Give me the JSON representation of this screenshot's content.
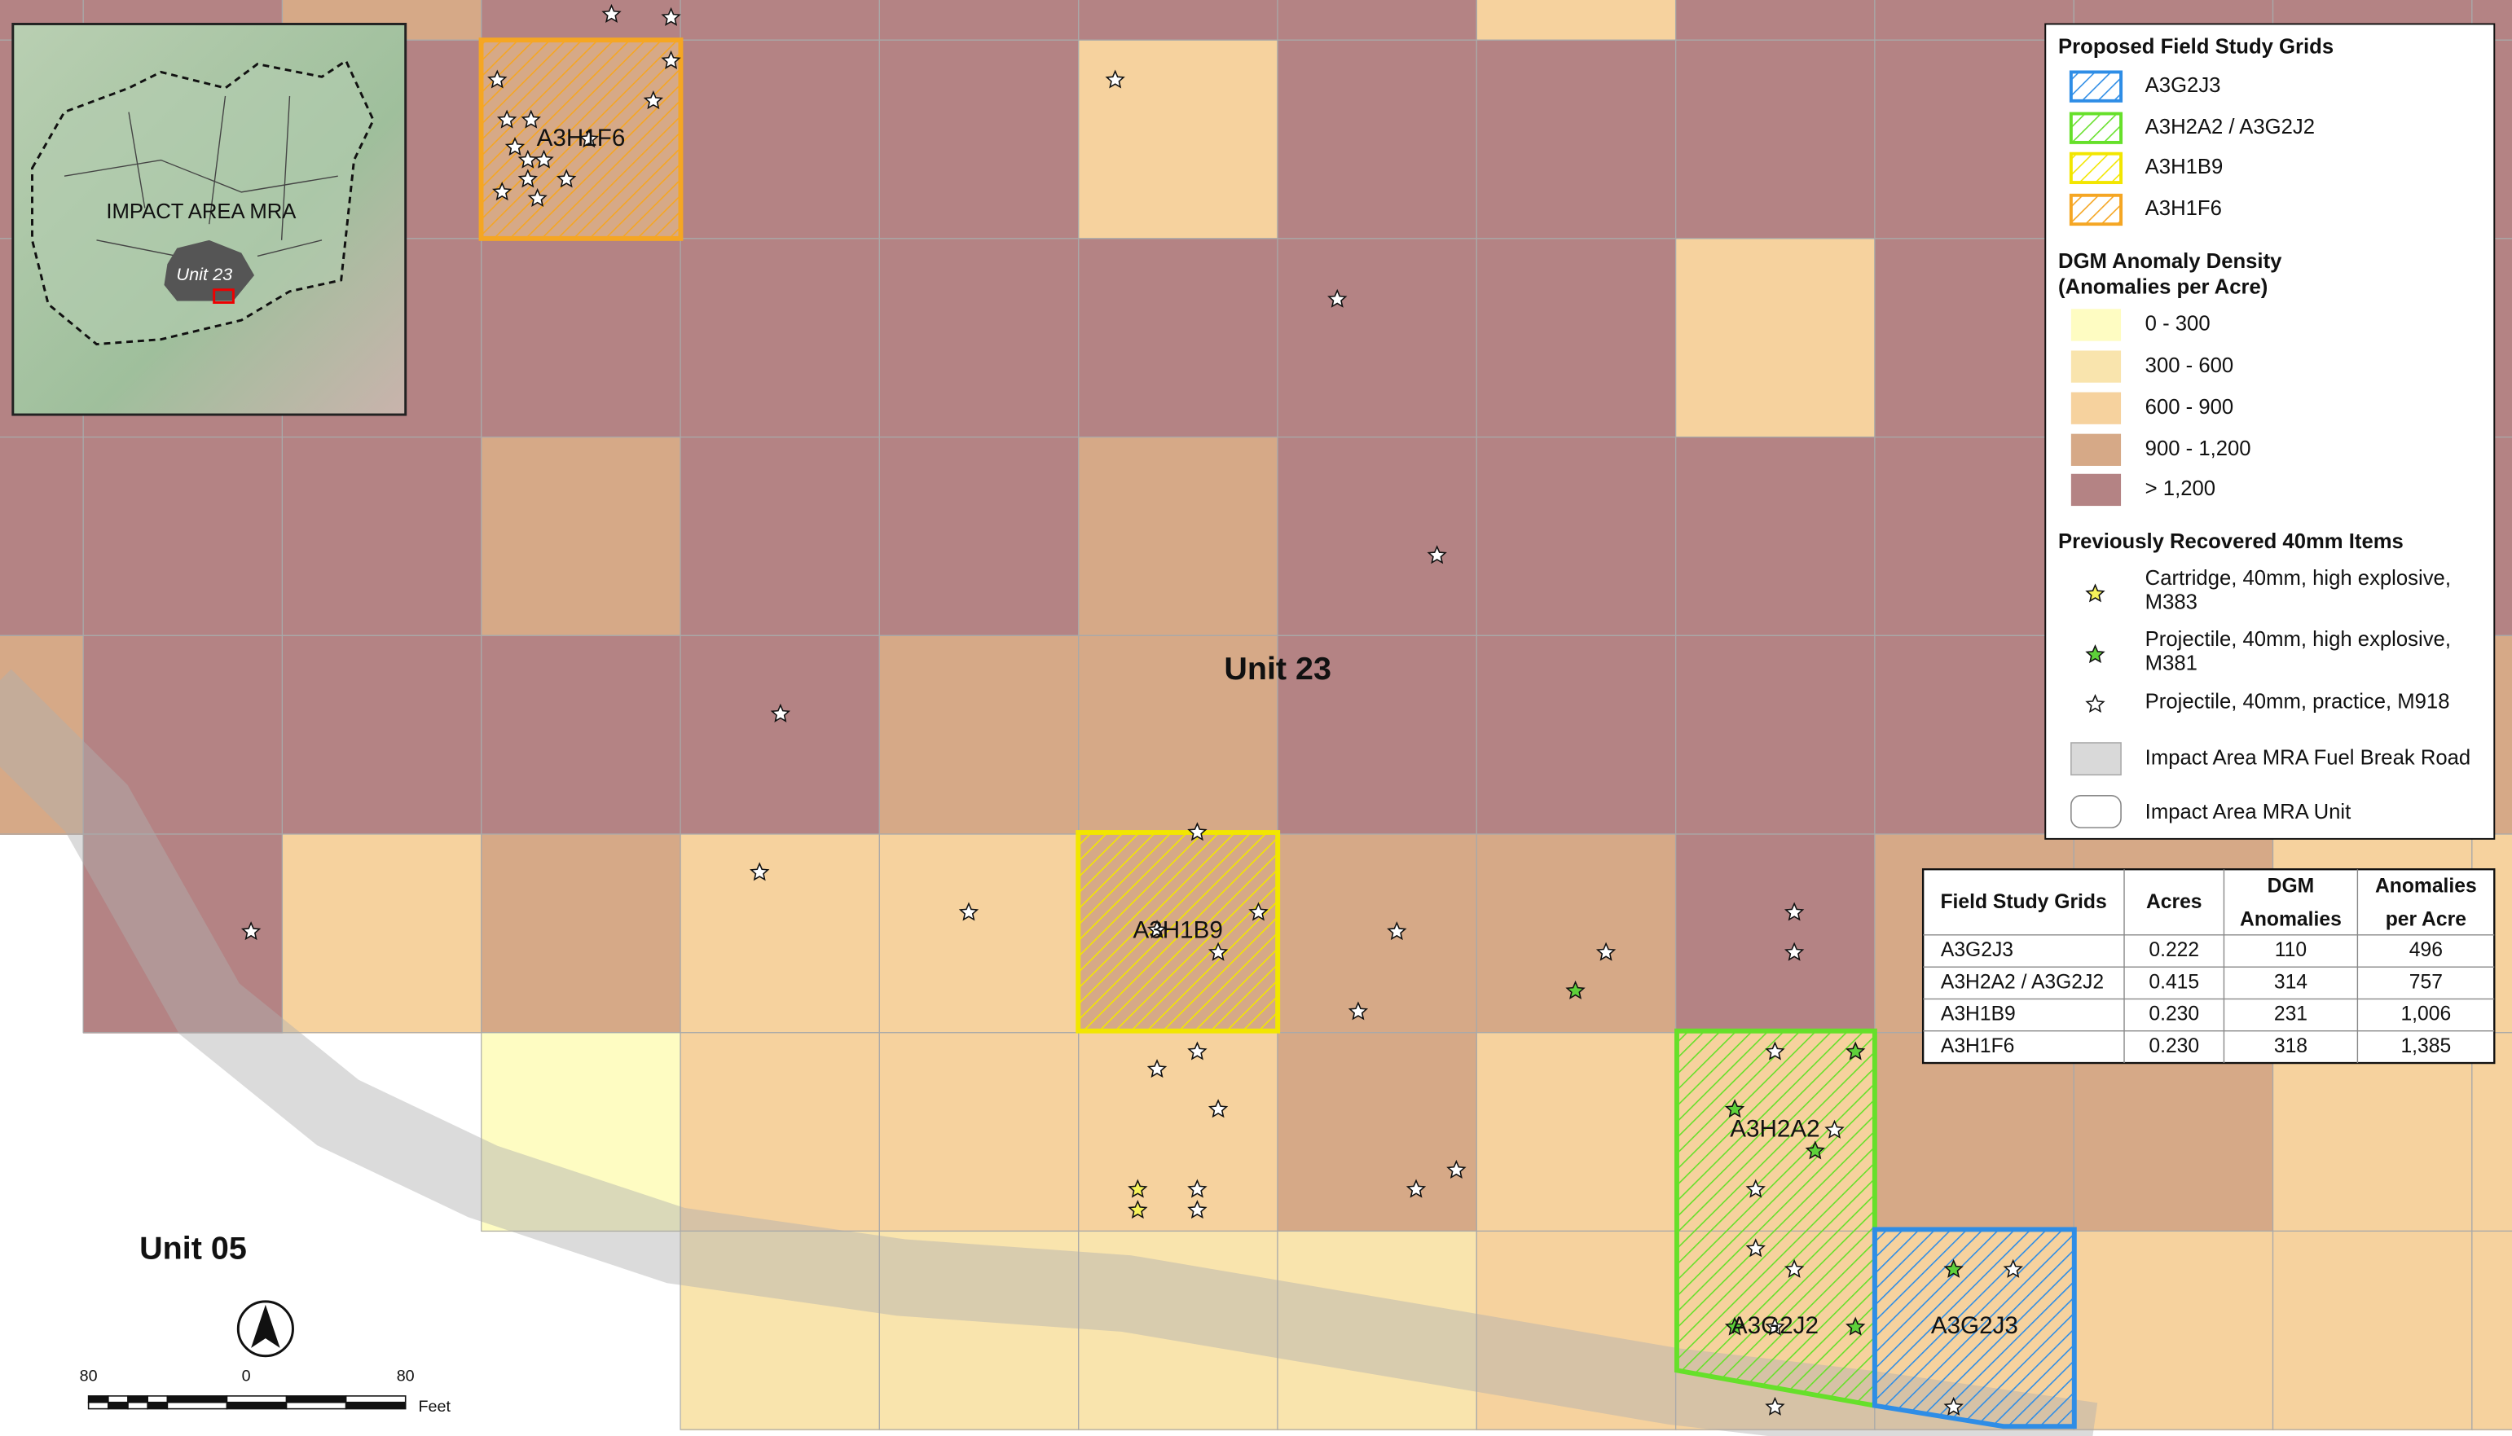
{
  "map": {
    "area_labels": [
      "Unit 23",
      "Unit 05"
    ],
    "grid_labels": [
      "A3H1F6",
      "A3H1B9",
      "A3H2A2",
      "A3G2J2",
      "A3G2J3"
    ],
    "inset": {
      "labels": [
        "IMPACT AREA MRA",
        "Unit 23"
      ]
    },
    "scale_bar": {
      "ticks": [
        "80",
        "0",
        "80"
      ],
      "unit": "Feet"
    },
    "legend": {
      "field_grids": {
        "title": "Proposed Field Study Grids",
        "items": [
          "A3G2J3",
          "A3H2A2 / A3G2J2",
          "A3H1B9",
          "A3H1F6"
        ]
      },
      "density": {
        "title": [
          "DGM Anomaly Density",
          "(Anomalies per Acre)"
        ],
        "items": [
          "0 - 300",
          "300 - 600",
          "600 - 900",
          "900 - 1,200",
          "> 1,200"
        ]
      },
      "items40mm": {
        "title": "Previously Recovered 40mm Items",
        "items": [
          [
            "Cartridge, 40mm, high explosive,",
            "M383"
          ],
          [
            "Projectile, 40mm, high explosive,",
            "M381"
          ],
          [
            "Projectile, 40mm, practice, M918"
          ]
        ]
      },
      "other": [
        "Impact Area MRA Fuel Break Road",
        "Impact Area MRA Unit"
      ]
    },
    "table": {
      "header": [
        [
          "Field Study Grids"
        ],
        [
          "Acres"
        ],
        [
          "DGM",
          "Anomalies"
        ],
        [
          "Anomalies",
          "per Acre"
        ]
      ],
      "rows": [
        [
          "A3G2J3",
          "0.222",
          "110",
          "496"
        ],
        [
          "A3H2A2 / A3G2J2",
          "0.415",
          "314",
          "757"
        ],
        [
          "A3H1B9",
          "0.230",
          "231",
          "1,006"
        ],
        [
          "A3H1F6",
          "0.230",
          "318",
          "1,385"
        ]
      ]
    }
  }
}
